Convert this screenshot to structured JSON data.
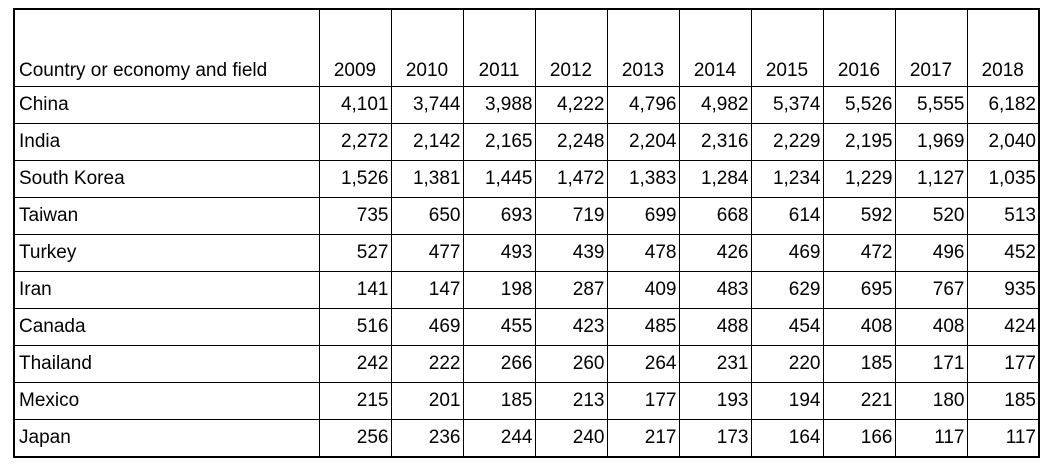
{
  "table": {
    "header": [
      "Country or economy and field",
      "2009",
      "2010",
      "2011",
      "2012",
      "2013",
      "2014",
      "2015",
      "2016",
      "2017",
      "2018"
    ],
    "rows": [
      [
        "China",
        "4,101",
        "3,744",
        "3,988",
        "4,222",
        "4,796",
        "4,982",
        "5,374",
        "5,526",
        "5,555",
        "6,182"
      ],
      [
        "India",
        "2,272",
        "2,142",
        "2,165",
        "2,248",
        "2,204",
        "2,316",
        "2,229",
        "2,195",
        "1,969",
        "2,040"
      ],
      [
        "South Korea",
        "1,526",
        "1,381",
        "1,445",
        "1,472",
        "1,383",
        "1,284",
        "1,234",
        "1,229",
        "1,127",
        "1,035"
      ],
      [
        "Taiwan",
        "735",
        "650",
        "693",
        "719",
        "699",
        "668",
        "614",
        "592",
        "520",
        "513"
      ],
      [
        "Turkey",
        "527",
        "477",
        "493",
        "439",
        "478",
        "426",
        "469",
        "472",
        "496",
        "452"
      ],
      [
        "Iran",
        "141",
        "147",
        "198",
        "287",
        "409",
        "483",
        "629",
        "695",
        "767",
        "935"
      ],
      [
        "Canada",
        "516",
        "469",
        "455",
        "423",
        "485",
        "488",
        "454",
        "408",
        "408",
        "424"
      ],
      [
        "Thailand",
        "242",
        "222",
        "266",
        "260",
        "264",
        "231",
        "220",
        "185",
        "171",
        "177"
      ],
      [
        "Mexico",
        "215",
        "201",
        "185",
        "213",
        "177",
        "193",
        "194",
        "221",
        "180",
        "185"
      ],
      [
        "Japan",
        "256",
        "236",
        "244",
        "240",
        "217",
        "173",
        "164",
        "166",
        "117",
        "117"
      ]
    ]
  }
}
